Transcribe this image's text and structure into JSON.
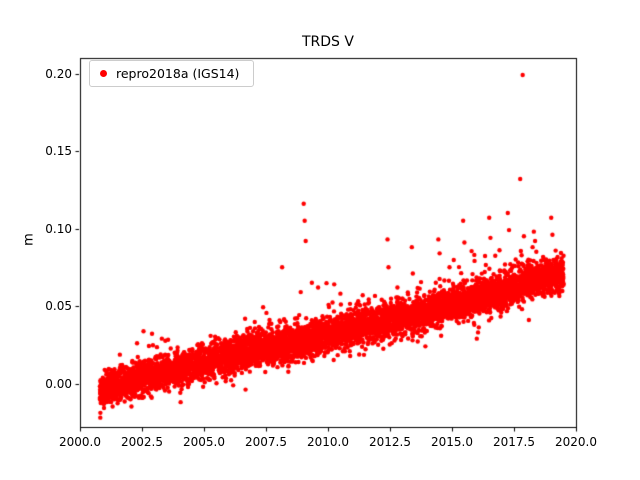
{
  "figure": {
    "background": "#ffffff",
    "axes_color": "#000000",
    "text_color": "#000000"
  },
  "chart_data": {
    "type": "scatter",
    "title": "TRDS V",
    "xlabel": "",
    "ylabel": "m",
    "xlim": [
      2000.0,
      2020.0
    ],
    "ylim": [
      -0.028,
      0.21
    ],
    "grid": false,
    "x_ticks": [
      {
        "value": 2000.0,
        "label": "2000.0"
      },
      {
        "value": 2002.5,
        "label": "2002.5"
      },
      {
        "value": 2005.0,
        "label": "2005.0"
      },
      {
        "value": 2007.5,
        "label": "2007.5"
      },
      {
        "value": 2010.0,
        "label": "2010.0"
      },
      {
        "value": 2012.5,
        "label": "2012.5"
      },
      {
        "value": 2015.0,
        "label": "2015.0"
      },
      {
        "value": 2017.5,
        "label": "2017.5"
      },
      {
        "value": 2020.0,
        "label": "2020.0"
      }
    ],
    "y_ticks": [
      {
        "value": 0.0,
        "label": "0.00"
      },
      {
        "value": 0.05,
        "label": "0.05"
      },
      {
        "value": 0.1,
        "label": "0.10"
      },
      {
        "value": 0.15,
        "label": "0.15"
      },
      {
        "value": 0.2,
        "label": "0.20"
      }
    ],
    "legend": {
      "label": "repro2018a (IGS14)",
      "position": "upper-left",
      "marker_color": "#ff0000"
    },
    "series": [
      {
        "name": "repro2018a (IGS14)",
        "color": "#ff0000",
        "marker": "dot",
        "marker_radius": 2.2,
        "x_range": [
          2000.8,
          2019.5
        ],
        "n_points": 6000,
        "seed": 42,
        "trend_anchors": [
          [
            2000.8,
            -0.004
          ],
          [
            2002.5,
            0.003
          ],
          [
            2005.0,
            0.013
          ],
          [
            2007.5,
            0.024
          ],
          [
            2009.0,
            0.027
          ],
          [
            2010.0,
            0.032
          ],
          [
            2012.5,
            0.04
          ],
          [
            2015.0,
            0.051
          ],
          [
            2017.5,
            0.062
          ],
          [
            2018.5,
            0.068
          ],
          [
            2019.5,
            0.071
          ]
        ],
        "noise_std": 0.0055,
        "positive_tail": {
          "probability": 0.035,
          "max": 0.022
        },
        "negative_tail": {
          "probability": 0.012,
          "max": 0.014
        },
        "outliers": [
          [
            2002.3,
            0.026
          ],
          [
            2003.3,
            0.029
          ],
          [
            2008.15,
            0.075
          ],
          [
            2008.9,
            0.059
          ],
          [
            2009.02,
            0.116
          ],
          [
            2009.06,
            0.105
          ],
          [
            2009.1,
            0.092
          ],
          [
            2009.35,
            0.065
          ],
          [
            2009.6,
            0.062
          ],
          [
            2010.25,
            0.064
          ],
          [
            2010.5,
            0.058
          ],
          [
            2011.4,
            0.057
          ],
          [
            2012.4,
            0.093
          ],
          [
            2012.44,
            0.075
          ],
          [
            2012.8,
            0.062
          ],
          [
            2013.38,
            0.088
          ],
          [
            2013.42,
            0.071
          ],
          [
            2014.45,
            0.093
          ],
          [
            2014.5,
            0.084
          ],
          [
            2014.9,
            0.075
          ],
          [
            2015.45,
            0.105
          ],
          [
            2015.5,
            0.091
          ],
          [
            2015.9,
            0.083
          ],
          [
            2016.0,
            0.029
          ],
          [
            2016.05,
            0.033
          ],
          [
            2016.5,
            0.107
          ],
          [
            2016.55,
            0.094
          ],
          [
            2017.25,
            0.11
          ],
          [
            2017.3,
            0.099
          ],
          [
            2017.75,
            0.132
          ],
          [
            2017.85,
            0.199
          ],
          [
            2017.9,
            0.095
          ],
          [
            2018.1,
            0.041
          ],
          [
            2018.25,
            0.088
          ],
          [
            2018.3,
            0.098
          ],
          [
            2018.35,
            0.092
          ],
          [
            2018.4,
            0.085
          ],
          [
            2019.0,
            0.107
          ],
          [
            2019.05,
            0.096
          ],
          [
            2019.2,
            0.063
          ]
        ]
      }
    ]
  }
}
